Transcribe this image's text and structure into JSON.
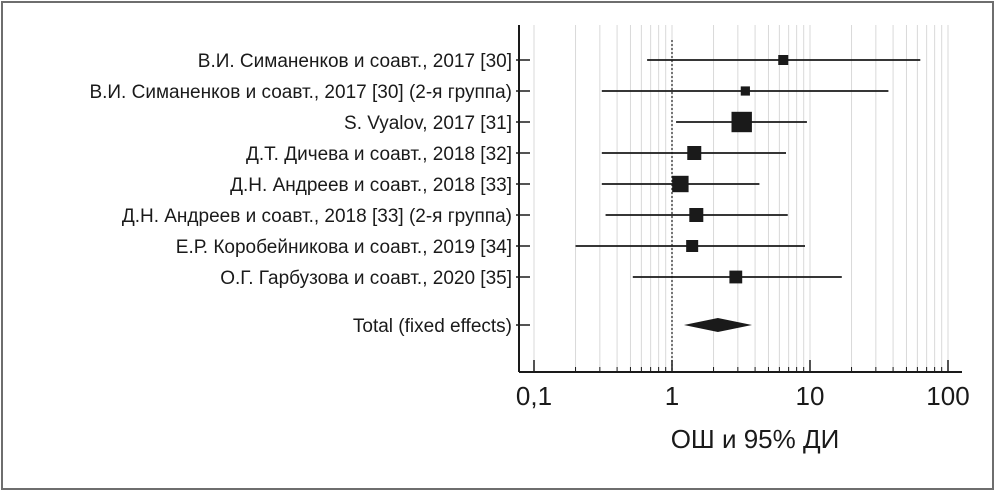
{
  "chart_data": {
    "type": "forest-plot",
    "title": "",
    "xlabel": "ОШ и 95% ДИ",
    "x_scale": "log",
    "xlim": [
      0.1,
      100
    ],
    "reference_line": 1,
    "x_ticks": [
      {
        "value": 0.1,
        "label": "0,1"
      },
      {
        "value": 1,
        "label": "1"
      },
      {
        "value": 10,
        "label": "10"
      },
      {
        "value": 100,
        "label": "100"
      }
    ],
    "studies": [
      {
        "label": "В.И. Симаненков и соавт., 2017 [30]",
        "or": 6.4,
        "ci_low": 0.66,
        "ci_high": 63,
        "weight": 1
      },
      {
        "label": "В.И. Симаненков и соавт., 2017 [30] (2-я группа)",
        "or": 3.4,
        "ci_low": 0.31,
        "ci_high": 37,
        "weight": 0.8
      },
      {
        "label": "S. Vyalov, 2017 [31]",
        "or": 3.2,
        "ci_low": 1.07,
        "ci_high": 9.5,
        "weight": 3.6
      },
      {
        "label": "Д.Т. Дичева и соавт., 2018 [32]",
        "or": 1.45,
        "ci_low": 0.31,
        "ci_high": 6.7,
        "weight": 2
      },
      {
        "label": "Д.Н. Андреев и соавт., 2018 [33]",
        "or": 1.15,
        "ci_low": 0.31,
        "ci_high": 4.3,
        "weight": 2.6
      },
      {
        "label": "Д.Н. Андреев и соавт., 2018 [33] (2-я группа)",
        "or": 1.5,
        "ci_low": 0.33,
        "ci_high": 6.9,
        "weight": 2
      },
      {
        "label": "Е.Р. Коробейникова и соавт., 2019 [34]",
        "or": 1.4,
        "ci_low": 0.2,
        "ci_high": 9.2,
        "weight": 1.5
      },
      {
        "label": "О.Г. Гарбузова и соавт., 2020 [35]",
        "or": 2.9,
        "ci_low": 0.52,
        "ci_high": 17,
        "weight": 1.7
      }
    ],
    "pooled": {
      "label": "Total (fixed effects)",
      "or": 2.15,
      "ci_low": 1.22,
      "ci_high": 3.8
    }
  },
  "colors": {
    "ink": "#1a1a1a",
    "grid": "#d9d9d9",
    "border": "#6e6e6e"
  }
}
